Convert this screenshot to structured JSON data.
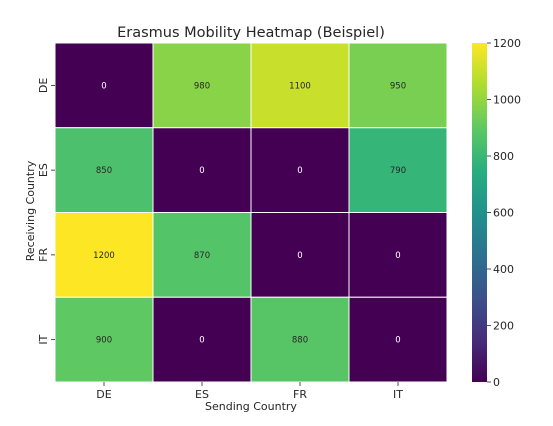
{
  "chart_data": {
    "type": "heatmap",
    "title": "Erasmus Mobility Heatmap (Beispiel)",
    "xlabel": "Sending Country",
    "ylabel": "Receiving Country",
    "x_categories": [
      "DE",
      "ES",
      "FR",
      "IT"
    ],
    "y_categories": [
      "DE",
      "ES",
      "FR",
      "IT"
    ],
    "values": [
      [
        0,
        980,
        1100,
        950
      ],
      [
        850,
        0,
        0,
        790
      ],
      [
        1200,
        870,
        0,
        0
      ],
      [
        900,
        0,
        880,
        0
      ]
    ],
    "value_labels": [
      [
        "0",
        "980",
        "1100",
        "950"
      ],
      [
        "850",
        "0",
        "0",
        "790"
      ],
      [
        "1200",
        "870",
        "0",
        "0"
      ],
      [
        "900",
        "0",
        "880",
        "0"
      ]
    ],
    "colormap": "viridis",
    "vmin": 0,
    "vmax": 1200,
    "colorbar_ticks": [
      "0",
      "200",
      "400",
      "600",
      "800",
      "1000",
      "1200"
    ],
    "colorbar_tick_values": [
      0,
      200,
      400,
      600,
      800,
      1000,
      1200
    ]
  }
}
